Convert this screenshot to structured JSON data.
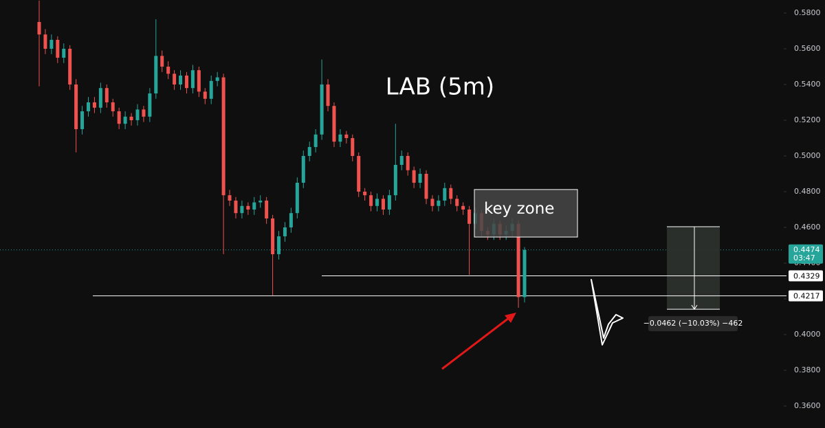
{
  "chart_data": {
    "type": "candlestick",
    "title": "LAB (5m)",
    "up_color": "#26a69a",
    "down_color": "#ef5350",
    "ylim": [
      0.3477,
      0.5873
    ],
    "yticks": [
      {
        "value": 0.58,
        "label": "0.5800"
      },
      {
        "value": 0.56,
        "label": "0.5600"
      },
      {
        "value": 0.54,
        "label": "0.5400"
      },
      {
        "value": 0.52,
        "label": "0.5200"
      },
      {
        "value": 0.5,
        "label": "0.5000"
      },
      {
        "value": 0.48,
        "label": "0.4800"
      },
      {
        "value": 0.46,
        "label": "0.4600"
      },
      {
        "value": 0.44,
        "label": "0.4400"
      },
      {
        "value": 0.42,
        "label": "0.4200"
      },
      {
        "value": 0.4,
        "label": "0.4000"
      },
      {
        "value": 0.38,
        "label": "0.3800"
      },
      {
        "value": 0.36,
        "label": "0.3600"
      }
    ],
    "ohlc": [
      [
        0.575,
        0.587,
        0.539,
        0.568
      ],
      [
        0.568,
        0.571,
        0.557,
        0.56
      ],
      [
        0.56,
        0.568,
        0.557,
        0.565
      ],
      [
        0.565,
        0.567,
        0.552,
        0.555
      ],
      [
        0.555,
        0.563,
        0.552,
        0.56
      ],
      [
        0.56,
        0.562,
        0.537,
        0.54
      ],
      [
        0.54,
        0.543,
        0.502,
        0.515
      ],
      [
        0.515,
        0.528,
        0.512,
        0.525
      ],
      [
        0.525,
        0.533,
        0.522,
        0.53
      ],
      [
        0.53,
        0.533,
        0.524,
        0.527
      ],
      [
        0.527,
        0.541,
        0.524,
        0.538
      ],
      [
        0.538,
        0.54,
        0.527,
        0.53
      ],
      [
        0.53,
        0.532,
        0.522,
        0.525
      ],
      [
        0.525,
        0.527,
        0.515,
        0.518
      ],
      [
        0.518,
        0.525,
        0.515,
        0.522
      ],
      [
        0.522,
        0.524,
        0.517,
        0.52
      ],
      [
        0.52,
        0.529,
        0.517,
        0.526
      ],
      [
        0.526,
        0.528,
        0.519,
        0.522
      ],
      [
        0.522,
        0.538,
        0.519,
        0.535
      ],
      [
        0.535,
        0.5765,
        0.532,
        0.556
      ],
      [
        0.556,
        0.559,
        0.547,
        0.55
      ],
      [
        0.55,
        0.553,
        0.543,
        0.546
      ],
      [
        0.546,
        0.548,
        0.537,
        0.54
      ],
      [
        0.54,
        0.548,
        0.537,
        0.545
      ],
      [
        0.545,
        0.547,
        0.535,
        0.538
      ],
      [
        0.538,
        0.551,
        0.535,
        0.548
      ],
      [
        0.548,
        0.55,
        0.533,
        0.536
      ],
      [
        0.536,
        0.538,
        0.529,
        0.532
      ],
      [
        0.532,
        0.545,
        0.529,
        0.542
      ],
      [
        0.542,
        0.547,
        0.539,
        0.544
      ],
      [
        0.544,
        0.546,
        0.445,
        0.478
      ],
      [
        0.478,
        0.481,
        0.472,
        0.475
      ],
      [
        0.475,
        0.477,
        0.465,
        0.468
      ],
      [
        0.468,
        0.475,
        0.465,
        0.472
      ],
      [
        0.472,
        0.474,
        0.467,
        0.47
      ],
      [
        0.47,
        0.477,
        0.467,
        0.474
      ],
      [
        0.474,
        0.478,
        0.471,
        0.475
      ],
      [
        0.475,
        0.477,
        0.462,
        0.465
      ],
      [
        0.465,
        0.467,
        0.422,
        0.445
      ],
      [
        0.445,
        0.458,
        0.442,
        0.455
      ],
      [
        0.455,
        0.463,
        0.452,
        0.46
      ],
      [
        0.46,
        0.471,
        0.457,
        0.468
      ],
      [
        0.468,
        0.488,
        0.465,
        0.485
      ],
      [
        0.485,
        0.503,
        0.482,
        0.5
      ],
      [
        0.5,
        0.508,
        0.497,
        0.505
      ],
      [
        0.505,
        0.515,
        0.502,
        0.512
      ],
      [
        0.512,
        0.554,
        0.509,
        0.54
      ],
      [
        0.54,
        0.543,
        0.525,
        0.528
      ],
      [
        0.528,
        0.53,
        0.505,
        0.508
      ],
      [
        0.508,
        0.515,
        0.505,
        0.512
      ],
      [
        0.512,
        0.514,
        0.507,
        0.51
      ],
      [
        0.51,
        0.512,
        0.497,
        0.5
      ],
      [
        0.5,
        0.502,
        0.477,
        0.48
      ],
      [
        0.48,
        0.482,
        0.475,
        0.478
      ],
      [
        0.478,
        0.48,
        0.469,
        0.472
      ],
      [
        0.472,
        0.479,
        0.469,
        0.476
      ],
      [
        0.476,
        0.478,
        0.467,
        0.47
      ],
      [
        0.47,
        0.481,
        0.467,
        0.478
      ],
      [
        0.478,
        0.518,
        0.475,
        0.495
      ],
      [
        0.495,
        0.503,
        0.492,
        0.5
      ],
      [
        0.5,
        0.502,
        0.489,
        0.492
      ],
      [
        0.492,
        0.494,
        0.482,
        0.485
      ],
      [
        0.485,
        0.493,
        0.482,
        0.49
      ],
      [
        0.49,
        0.492,
        0.473,
        0.476
      ],
      [
        0.476,
        0.478,
        0.469,
        0.472
      ],
      [
        0.472,
        0.478,
        0.469,
        0.475
      ],
      [
        0.475,
        0.485,
        0.472,
        0.482
      ],
      [
        0.482,
        0.484,
        0.473,
        0.476
      ],
      [
        0.476,
        0.478,
        0.469,
        0.472
      ],
      [
        0.472,
        0.474,
        0.467,
        0.47
      ],
      [
        0.47,
        0.472,
        0.4335,
        0.462
      ],
      [
        0.462,
        0.471,
        0.459,
        0.468
      ],
      [
        0.468,
        0.47,
        0.455,
        0.458
      ],
      [
        0.458,
        0.46,
        0.453,
        0.456
      ],
      [
        0.456,
        0.465,
        0.453,
        0.462
      ],
      [
        0.462,
        0.464,
        0.453,
        0.456
      ],
      [
        0.456,
        0.461,
        0.453,
        0.458
      ],
      [
        0.458,
        0.465,
        0.455,
        0.462
      ],
      [
        0.462,
        0.464,
        0.415,
        0.421
      ],
      [
        0.421,
        0.449,
        0.418,
        0.4474
      ]
    ],
    "current_price": {
      "value": 0.4474,
      "label": "0.4474",
      "countdown": "03:47",
      "color": "#26a69a"
    },
    "price_lines": [
      {
        "value": 0.4329,
        "label": "0.4329"
      },
      {
        "value": 0.4217,
        "label": "0.4217"
      }
    ],
    "key_zone": {
      "text": "key zone",
      "top": 0.4812,
      "bottom": 0.4546
    },
    "measure": {
      "top": 0.4604,
      "bottom": 0.4142,
      "label": "−0.0462 (−10.03%) −462"
    }
  }
}
